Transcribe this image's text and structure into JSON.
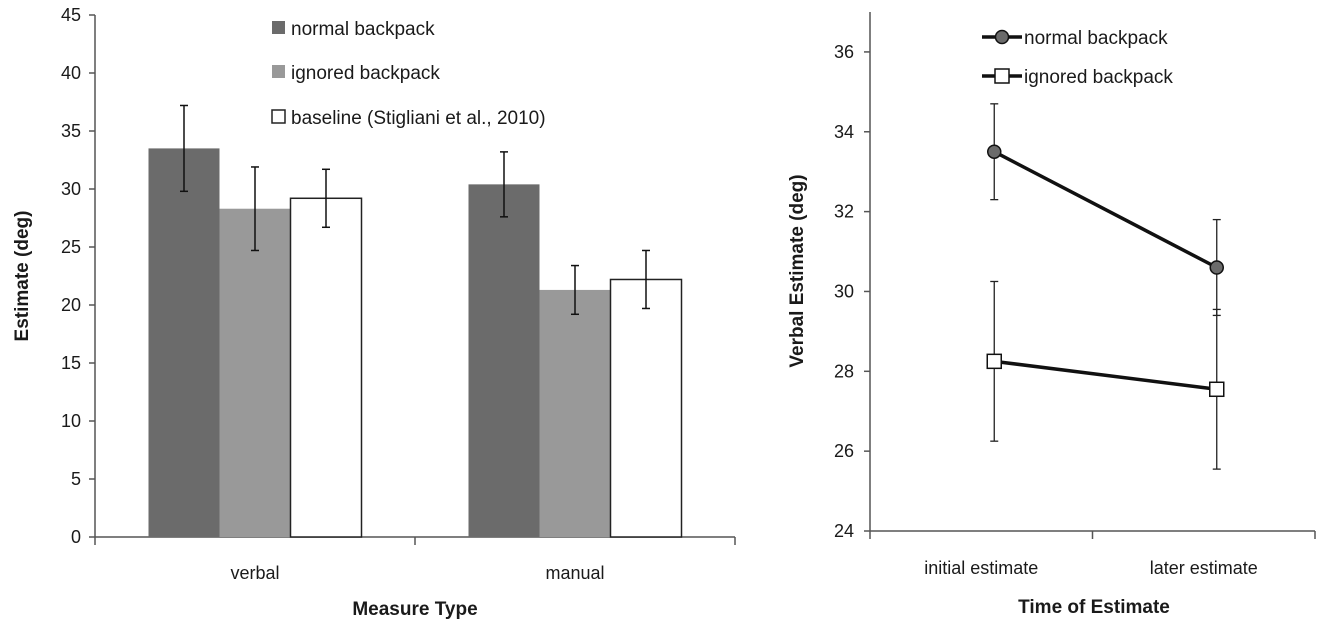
{
  "chart_data": [
    {
      "type": "bar",
      "xlabel": "Measure Type",
      "ylabel": "Estimate (deg)",
      "ylim": [
        0,
        45
      ],
      "yticks": [
        0,
        5,
        10,
        15,
        20,
        25,
        30,
        35,
        40,
        45
      ],
      "categories": [
        "verbal",
        "manual"
      ],
      "legend_position": "top",
      "series": [
        {
          "name": "normal backpack",
          "color": "#6b6b6b",
          "values": [
            33.5,
            30.4
          ],
          "error": [
            3.7,
            2.8
          ]
        },
        {
          "name": "ignored backpack",
          "color": "#999999",
          "values": [
            28.3,
            21.3
          ],
          "error": [
            3.6,
            2.1
          ]
        },
        {
          "name": "baseline (Stigliani et al., 2010)",
          "color": "#ffffff",
          "values": [
            29.2,
            22.2
          ],
          "error": [
            2.5,
            2.5
          ]
        }
      ]
    },
    {
      "type": "line",
      "xlabel": "Time of Estimate",
      "ylabel": "Verbal Estimate (deg)",
      "ylim": [
        24,
        37
      ],
      "yticks": [
        24,
        26,
        28,
        30,
        32,
        34,
        36
      ],
      "categories": [
        "initial estimate",
        "later estimate"
      ],
      "legend_position": "top",
      "series": [
        {
          "name": "normal backpack",
          "marker": "circle",
          "color": "#6b6b6b",
          "values": [
            33.5,
            30.6
          ],
          "error": [
            1.2,
            1.2
          ]
        },
        {
          "name": "ignored backpack",
          "marker": "square",
          "color": "#ffffff",
          "values": [
            28.25,
            27.55
          ],
          "error": [
            2.0,
            2.0
          ]
        }
      ]
    }
  ]
}
